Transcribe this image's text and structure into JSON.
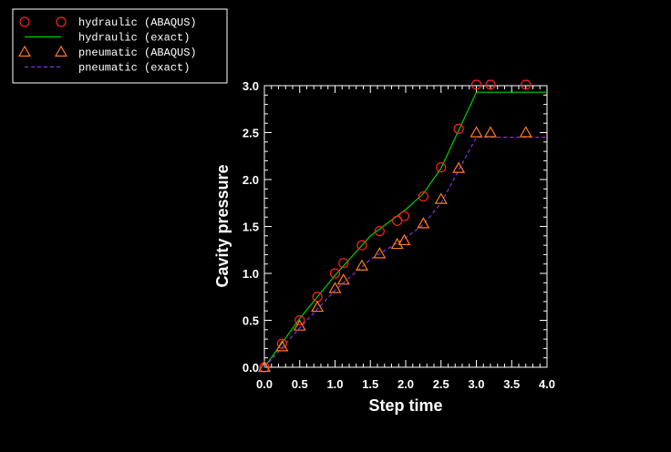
{
  "chart_data": {
    "type": "line",
    "title": "",
    "xlabel": "Step time",
    "ylabel": "Cavity pressure",
    "xlim": [
      0,
      4
    ],
    "ylim": [
      0,
      3
    ],
    "x_ticks": [
      "0.0",
      "0.5",
      "1.0",
      "1.5",
      "2.0",
      "2.5",
      "3.0",
      "3.5",
      "4.0"
    ],
    "y_ticks": [
      "0.0",
      "0.5",
      "1.0",
      "1.5",
      "2.0",
      "2.5",
      "3.0"
    ],
    "grid": false,
    "legend_position": "top-left",
    "series": [
      {
        "name": "hydraulic (ABAQUS)",
        "style": "markers",
        "marker": "circle",
        "color": "#ff2020",
        "points": [
          [
            0,
            0
          ],
          [
            0.25,
            0.25
          ],
          [
            0.5,
            0.5
          ],
          [
            0.75,
            0.75
          ],
          [
            1.0,
            1.0
          ],
          [
            1.12,
            1.11
          ],
          [
            1.38,
            1.3
          ],
          [
            1.63,
            1.45
          ],
          [
            1.88,
            1.56
          ],
          [
            1.98,
            1.61
          ],
          [
            2.25,
            1.82
          ],
          [
            2.5,
            2.13
          ],
          [
            2.75,
            2.54
          ],
          [
            3.0,
            3.01
          ],
          [
            3.2,
            3.01
          ],
          [
            3.7,
            3.01
          ]
        ]
      },
      {
        "name": "hydraulic (exact)",
        "style": "line",
        "color": "#00d000",
        "points": [
          [
            0,
            0
          ],
          [
            0.5,
            0.52
          ],
          [
            1.0,
            0.98
          ],
          [
            1.5,
            1.4
          ],
          [
            2.0,
            1.68
          ],
          [
            2.25,
            1.85
          ],
          [
            2.5,
            2.12
          ],
          [
            3.0,
            2.93
          ],
          [
            4.0,
            2.93
          ]
        ]
      },
      {
        "name": "pneumatic (ABAQUS)",
        "style": "markers",
        "marker": "triangle",
        "color": "#ff7a20",
        "points": [
          [
            0,
            0
          ],
          [
            0.25,
            0.22
          ],
          [
            0.5,
            0.44
          ],
          [
            0.75,
            0.64
          ],
          [
            1.0,
            0.84
          ],
          [
            1.12,
            0.93
          ],
          [
            1.38,
            1.08
          ],
          [
            1.63,
            1.21
          ],
          [
            1.88,
            1.31
          ],
          [
            1.98,
            1.35
          ],
          [
            2.25,
            1.53
          ],
          [
            2.5,
            1.79
          ],
          [
            2.75,
            2.12
          ],
          [
            3.0,
            2.5
          ],
          [
            3.2,
            2.5
          ],
          [
            3.7,
            2.5
          ]
        ]
      },
      {
        "name": "pneumatic (exact)",
        "style": "dashed",
        "color": "#9030e0",
        "points": [
          [
            0,
            0
          ],
          [
            0.5,
            0.42
          ],
          [
            1.0,
            0.82
          ],
          [
            1.5,
            1.15
          ],
          [
            2.0,
            1.38
          ],
          [
            2.25,
            1.52
          ],
          [
            2.5,
            1.75
          ],
          [
            3.0,
            2.45
          ],
          [
            4.0,
            2.45
          ]
        ]
      }
    ]
  }
}
